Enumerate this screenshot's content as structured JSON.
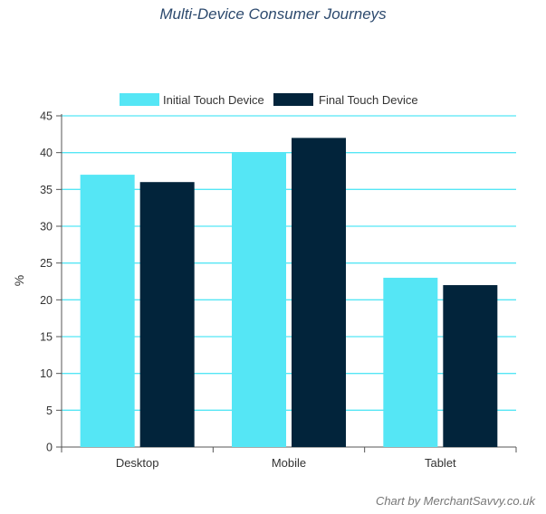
{
  "chart_data": {
    "type": "bar",
    "title": "Multi-Device Consumer Journeys",
    "ylabel": "%",
    "xlabel": "",
    "ylim": [
      0,
      45
    ],
    "yticks": [
      0,
      5,
      10,
      15,
      20,
      25,
      30,
      35,
      40,
      45
    ],
    "categories": [
      "Desktop",
      "Mobile",
      "Tablet"
    ],
    "series": [
      {
        "name": "Initial Touch Device",
        "values": [
          37,
          40,
          23
        ],
        "color": "#55e6f5"
      },
      {
        "name": "Final Touch Device",
        "values": [
          36,
          42,
          22
        ],
        "color": "#02243b"
      }
    ],
    "grid": true,
    "grid_color": "#55e6f5",
    "legend_position": "top"
  },
  "credit": "Chart by MerchantSavvy.co.uk"
}
